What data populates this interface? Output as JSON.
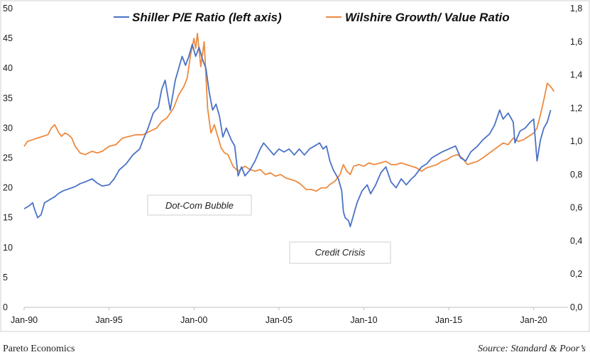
{
  "chart_data": {
    "type": "line",
    "title": "",
    "series": [
      {
        "name": "Shiller P/E Ratio (left axis)",
        "axis": "left",
        "color": "#4a72c6",
        "points": [
          [
            1990.0,
            16.5
          ],
          [
            1990.3,
            17.0
          ],
          [
            1990.5,
            17.5
          ],
          [
            1990.6,
            16.5
          ],
          [
            1990.8,
            15.0
          ],
          [
            1991.0,
            15.5
          ],
          [
            1991.2,
            17.5
          ],
          [
            1991.5,
            18.0
          ],
          [
            1991.8,
            18.5
          ],
          [
            1992.0,
            19.0
          ],
          [
            1992.3,
            19.5
          ],
          [
            1992.6,
            19.8
          ],
          [
            1993.0,
            20.2
          ],
          [
            1993.3,
            20.7
          ],
          [
            1993.6,
            21.0
          ],
          [
            1994.0,
            21.5
          ],
          [
            1994.3,
            20.8
          ],
          [
            1994.6,
            20.3
          ],
          [
            1995.0,
            20.5
          ],
          [
            1995.3,
            21.5
          ],
          [
            1995.6,
            23.0
          ],
          [
            1996.0,
            24.0
          ],
          [
            1996.4,
            25.5
          ],
          [
            1996.8,
            26.5
          ],
          [
            1997.0,
            28.0
          ],
          [
            1997.3,
            30.0
          ],
          [
            1997.6,
            32.5
          ],
          [
            1997.9,
            33.5
          ],
          [
            1998.1,
            36.5
          ],
          [
            1998.3,
            38.0
          ],
          [
            1998.6,
            33.0
          ],
          [
            1998.9,
            38.0
          ],
          [
            1999.1,
            40.0
          ],
          [
            1999.3,
            42.0
          ],
          [
            1999.5,
            40.5
          ],
          [
            1999.7,
            42.0
          ],
          [
            1999.9,
            44.0
          ],
          [
            2000.0,
            43.0
          ],
          [
            2000.1,
            42.0
          ],
          [
            2000.3,
            43.5
          ],
          [
            2000.5,
            41.5
          ],
          [
            2000.7,
            40.0
          ],
          [
            2000.9,
            36.0
          ],
          [
            2001.1,
            33.0
          ],
          [
            2001.3,
            34.0
          ],
          [
            2001.5,
            32.0
          ],
          [
            2001.7,
            28.5
          ],
          [
            2001.9,
            30.0
          ],
          [
            2002.2,
            28.0
          ],
          [
            2002.4,
            27.0
          ],
          [
            2002.6,
            22.0
          ],
          [
            2002.8,
            23.5
          ],
          [
            2003.0,
            22.0
          ],
          [
            2003.3,
            23.0
          ],
          [
            2003.6,
            24.5
          ],
          [
            2003.9,
            26.5
          ],
          [
            2004.1,
            27.5
          ],
          [
            2004.4,
            26.5
          ],
          [
            2004.7,
            25.5
          ],
          [
            2005.0,
            26.5
          ],
          [
            2005.3,
            26.0
          ],
          [
            2005.6,
            26.5
          ],
          [
            2005.9,
            25.5
          ],
          [
            2006.2,
            26.5
          ],
          [
            2006.5,
            25.5
          ],
          [
            2006.8,
            26.5
          ],
          [
            2007.1,
            27.0
          ],
          [
            2007.4,
            27.5
          ],
          [
            2007.6,
            26.5
          ],
          [
            2007.8,
            27.0
          ],
          [
            2008.0,
            24.5
          ],
          [
            2008.2,
            23.0
          ],
          [
            2008.5,
            21.5
          ],
          [
            2008.7,
            19.5
          ],
          [
            2008.8,
            16.0
          ],
          [
            2008.9,
            15.0
          ],
          [
            2009.1,
            14.5
          ],
          [
            2009.2,
            13.5
          ],
          [
            2009.4,
            15.5
          ],
          [
            2009.6,
            17.5
          ],
          [
            2009.9,
            19.5
          ],
          [
            2010.2,
            20.5
          ],
          [
            2010.4,
            19.0
          ],
          [
            2010.7,
            20.5
          ],
          [
            2011.0,
            22.5
          ],
          [
            2011.3,
            23.5
          ],
          [
            2011.6,
            21.0
          ],
          [
            2011.9,
            20.0
          ],
          [
            2012.2,
            21.5
          ],
          [
            2012.5,
            20.5
          ],
          [
            2012.8,
            21.5
          ],
          [
            2013.0,
            22.0
          ],
          [
            2013.4,
            23.5
          ],
          [
            2013.7,
            24.0
          ],
          [
            2014.0,
            25.0
          ],
          [
            2014.3,
            25.5
          ],
          [
            2014.6,
            26.0
          ],
          [
            2015.0,
            26.5
          ],
          [
            2015.4,
            27.0
          ],
          [
            2015.7,
            25.0
          ],
          [
            2016.0,
            24.5
          ],
          [
            2016.3,
            26.0
          ],
          [
            2016.7,
            27.0
          ],
          [
            2017.0,
            28.0
          ],
          [
            2017.4,
            29.0
          ],
          [
            2017.7,
            30.5
          ],
          [
            2018.0,
            33.0
          ],
          [
            2018.2,
            31.5
          ],
          [
            2018.5,
            32.5
          ],
          [
            2018.8,
            31.0
          ],
          [
            2018.9,
            27.5
          ],
          [
            2019.2,
            29.5
          ],
          [
            2019.5,
            30.0
          ],
          [
            2019.8,
            31.0
          ],
          [
            2020.0,
            31.5
          ],
          [
            2020.2,
            24.5
          ],
          [
            2020.4,
            28.0
          ],
          [
            2020.6,
            30.0
          ],
          [
            2020.8,
            31.0
          ],
          [
            2021.0,
            33.0
          ]
        ]
      },
      {
        "name": "Wilshire Growth/ Value Ratio",
        "axis": "right",
        "color": "#ed8a3f",
        "points": [
          [
            1990.0,
            0.97
          ],
          [
            1990.2,
            1.0
          ],
          [
            1990.5,
            1.01
          ],
          [
            1990.8,
            1.02
          ],
          [
            1991.1,
            1.03
          ],
          [
            1991.4,
            1.04
          ],
          [
            1991.6,
            1.08
          ],
          [
            1991.8,
            1.1
          ],
          [
            1992.0,
            1.06
          ],
          [
            1992.2,
            1.03
          ],
          [
            1992.4,
            1.05
          ],
          [
            1992.6,
            1.04
          ],
          [
            1992.8,
            1.02
          ],
          [
            1993.0,
            0.97
          ],
          [
            1993.3,
            0.93
          ],
          [
            1993.6,
            0.92
          ],
          [
            1994.0,
            0.94
          ],
          [
            1994.3,
            0.93
          ],
          [
            1994.6,
            0.94
          ],
          [
            1995.0,
            0.97
          ],
          [
            1995.4,
            0.98
          ],
          [
            1995.8,
            1.02
          ],
          [
            1996.2,
            1.03
          ],
          [
            1996.6,
            1.04
          ],
          [
            1997.0,
            1.04
          ],
          [
            1997.4,
            1.06
          ],
          [
            1997.8,
            1.08
          ],
          [
            1998.1,
            1.12
          ],
          [
            1998.4,
            1.14
          ],
          [
            1998.8,
            1.2
          ],
          [
            1999.1,
            1.28
          ],
          [
            1999.4,
            1.33
          ],
          [
            1999.6,
            1.38
          ],
          [
            1999.8,
            1.52
          ],
          [
            2000.0,
            1.62
          ],
          [
            2000.1,
            1.56
          ],
          [
            2000.2,
            1.65
          ],
          [
            2000.4,
            1.45
          ],
          [
            2000.6,
            1.6
          ],
          [
            2000.8,
            1.2
          ],
          [
            2001.0,
            1.05
          ],
          [
            2001.2,
            1.1
          ],
          [
            2001.4,
            1.03
          ],
          [
            2001.6,
            0.96
          ],
          [
            2001.8,
            0.93
          ],
          [
            2002.0,
            0.92
          ],
          [
            2002.3,
            0.85
          ],
          [
            2002.6,
            0.82
          ],
          [
            2003.0,
            0.85
          ],
          [
            2003.3,
            0.83
          ],
          [
            2003.6,
            0.82
          ],
          [
            2003.9,
            0.83
          ],
          [
            2004.2,
            0.8
          ],
          [
            2004.5,
            0.81
          ],
          [
            2004.8,
            0.79
          ],
          [
            2005.1,
            0.8
          ],
          [
            2005.4,
            0.78
          ],
          [
            2005.7,
            0.77
          ],
          [
            2006.0,
            0.76
          ],
          [
            2006.3,
            0.74
          ],
          [
            2006.6,
            0.71
          ],
          [
            2006.9,
            0.71
          ],
          [
            2007.2,
            0.7
          ],
          [
            2007.5,
            0.72
          ],
          [
            2007.8,
            0.72
          ],
          [
            2008.0,
            0.74
          ],
          [
            2008.3,
            0.76
          ],
          [
            2008.6,
            0.8
          ],
          [
            2008.8,
            0.86
          ],
          [
            2009.0,
            0.82
          ],
          [
            2009.2,
            0.8
          ],
          [
            2009.4,
            0.85
          ],
          [
            2009.7,
            0.86
          ],
          [
            2010.0,
            0.85
          ],
          [
            2010.3,
            0.87
          ],
          [
            2010.6,
            0.86
          ],
          [
            2011.0,
            0.87
          ],
          [
            2011.3,
            0.88
          ],
          [
            2011.6,
            0.86
          ],
          [
            2011.9,
            0.86
          ],
          [
            2012.2,
            0.87
          ],
          [
            2012.5,
            0.86
          ],
          [
            2012.8,
            0.85
          ],
          [
            2013.1,
            0.84
          ],
          [
            2013.4,
            0.82
          ],
          [
            2013.7,
            0.84
          ],
          [
            2014.0,
            0.85
          ],
          [
            2014.3,
            0.86
          ],
          [
            2014.6,
            0.88
          ],
          [
            2014.9,
            0.89
          ],
          [
            2015.2,
            0.91
          ],
          [
            2015.5,
            0.92
          ],
          [
            2015.8,
            0.9
          ],
          [
            2016.1,
            0.86
          ],
          [
            2016.4,
            0.87
          ],
          [
            2016.7,
            0.88
          ],
          [
            2017.0,
            0.9
          ],
          [
            2017.4,
            0.93
          ],
          [
            2017.8,
            0.96
          ],
          [
            2018.2,
            0.99
          ],
          [
            2018.5,
            0.98
          ],
          [
            2018.8,
            1.02
          ],
          [
            2019.1,
            1.0
          ],
          [
            2019.4,
            1.01
          ],
          [
            2019.7,
            1.03
          ],
          [
            2020.0,
            1.05
          ],
          [
            2020.2,
            1.08
          ],
          [
            2020.4,
            1.16
          ],
          [
            2020.6,
            1.25
          ],
          [
            2020.8,
            1.35
          ],
          [
            2021.0,
            1.33
          ],
          [
            2021.2,
            1.3
          ]
        ]
      }
    ],
    "x_ticks": [
      "Jan-90",
      "Jan-95",
      "Jan-00",
      "Jan-05",
      "Jan-10",
      "Jan-15",
      "Jan-20"
    ],
    "x_tick_values": [
      1990,
      1995,
      2000,
      2005,
      2010,
      2015,
      2020
    ],
    "xlim": [
      1990,
      2022
    ],
    "y_left": {
      "ticks": [
        "0",
        "5",
        "10",
        "15",
        "20",
        "25",
        "30",
        "35",
        "40",
        "45",
        "50"
      ],
      "lim": [
        0,
        50
      ]
    },
    "y_right": {
      "ticks": [
        "0,0",
        "0,2",
        "0,4",
        "0,6",
        "0,8",
        "1,0",
        "1,2",
        "1,4",
        "1,6",
        "1,8"
      ],
      "lim": [
        0,
        1.8
      ]
    },
    "legend_placement": "top",
    "annotations": [
      "Dot-Com Bubble",
      "Credit Crisis"
    ],
    "grid": false
  },
  "footer": {
    "left": "Pareto Economics",
    "right": "Source: Standard & Poor’s"
  }
}
